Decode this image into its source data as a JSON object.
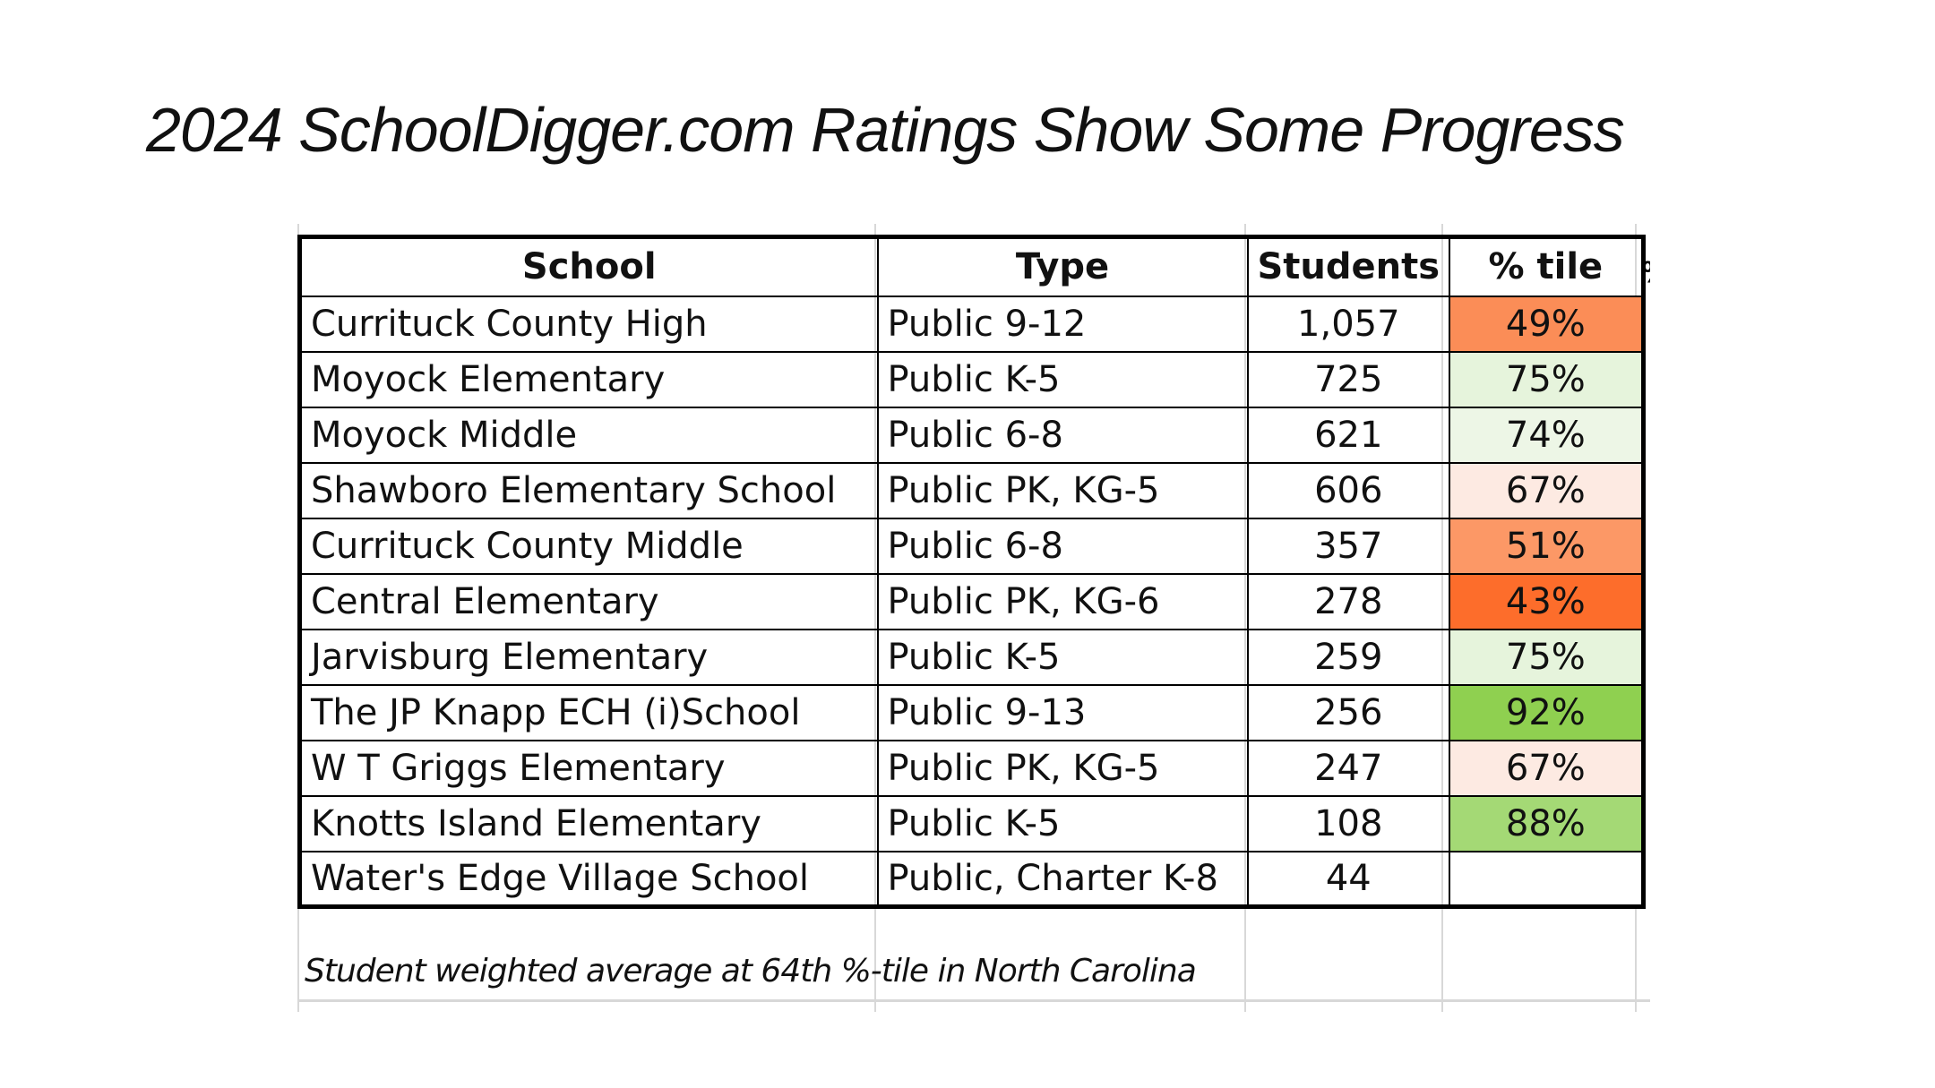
{
  "title": "2024 SchoolDigger.com Ratings Show Some Progress",
  "table": {
    "headers": [
      "School",
      "Type",
      "Students",
      "% tile"
    ],
    "rows": [
      {
        "school": "Currituck County High",
        "type": "Public 9-12",
        "students": "1,057",
        "pct": "49%",
        "color": "#fb8d57"
      },
      {
        "school": "Moyock Elementary",
        "type": "Public K-5",
        "students": "725",
        "pct": "75%",
        "color": "#e6f4dc"
      },
      {
        "school": "Moyock Middle",
        "type": "Public 6-8",
        "students": "621",
        "pct": "74%",
        "color": "#edf6e6"
      },
      {
        "school": "Shawboro Elementary School",
        "type": "Public PK, KG-5",
        "students": "606",
        "pct": "67%",
        "color": "#fdeae2"
      },
      {
        "school": "Currituck County Middle",
        "type": "Public 6-8",
        "students": "357",
        "pct": "51%",
        "color": "#fc9866"
      },
      {
        "school": "Central Elementary",
        "type": "Public PK, KG-6",
        "students": "278",
        "pct": "43%",
        "color": "#fd6d2b"
      },
      {
        "school": "Jarvisburg Elementary",
        "type": "Public K-5",
        "students": "259",
        "pct": "75%",
        "color": "#e6f4dc"
      },
      {
        "school": "The JP Knapp ECH (i)School",
        "type": "Public 9-13",
        "students": "256",
        "pct": "92%",
        "color": "#8fd050"
      },
      {
        "school": "W T Griggs Elementary",
        "type": "Public PK, KG-5",
        "students": "247",
        "pct": "67%",
        "color": "#fdeae2"
      },
      {
        "school": "Knotts Island Elementary",
        "type": "Public K-5",
        "students": "108",
        "pct": "88%",
        "color": "#a4d975"
      },
      {
        "school": "Water's Edge Village School",
        "type": "Public, Charter K-8",
        "students": "44",
        "pct": "",
        "color": "#ffffff"
      }
    ],
    "clipped_header": "%"
  },
  "footer_note": "Student weighted average at 64th %-tile in North Carolina"
}
